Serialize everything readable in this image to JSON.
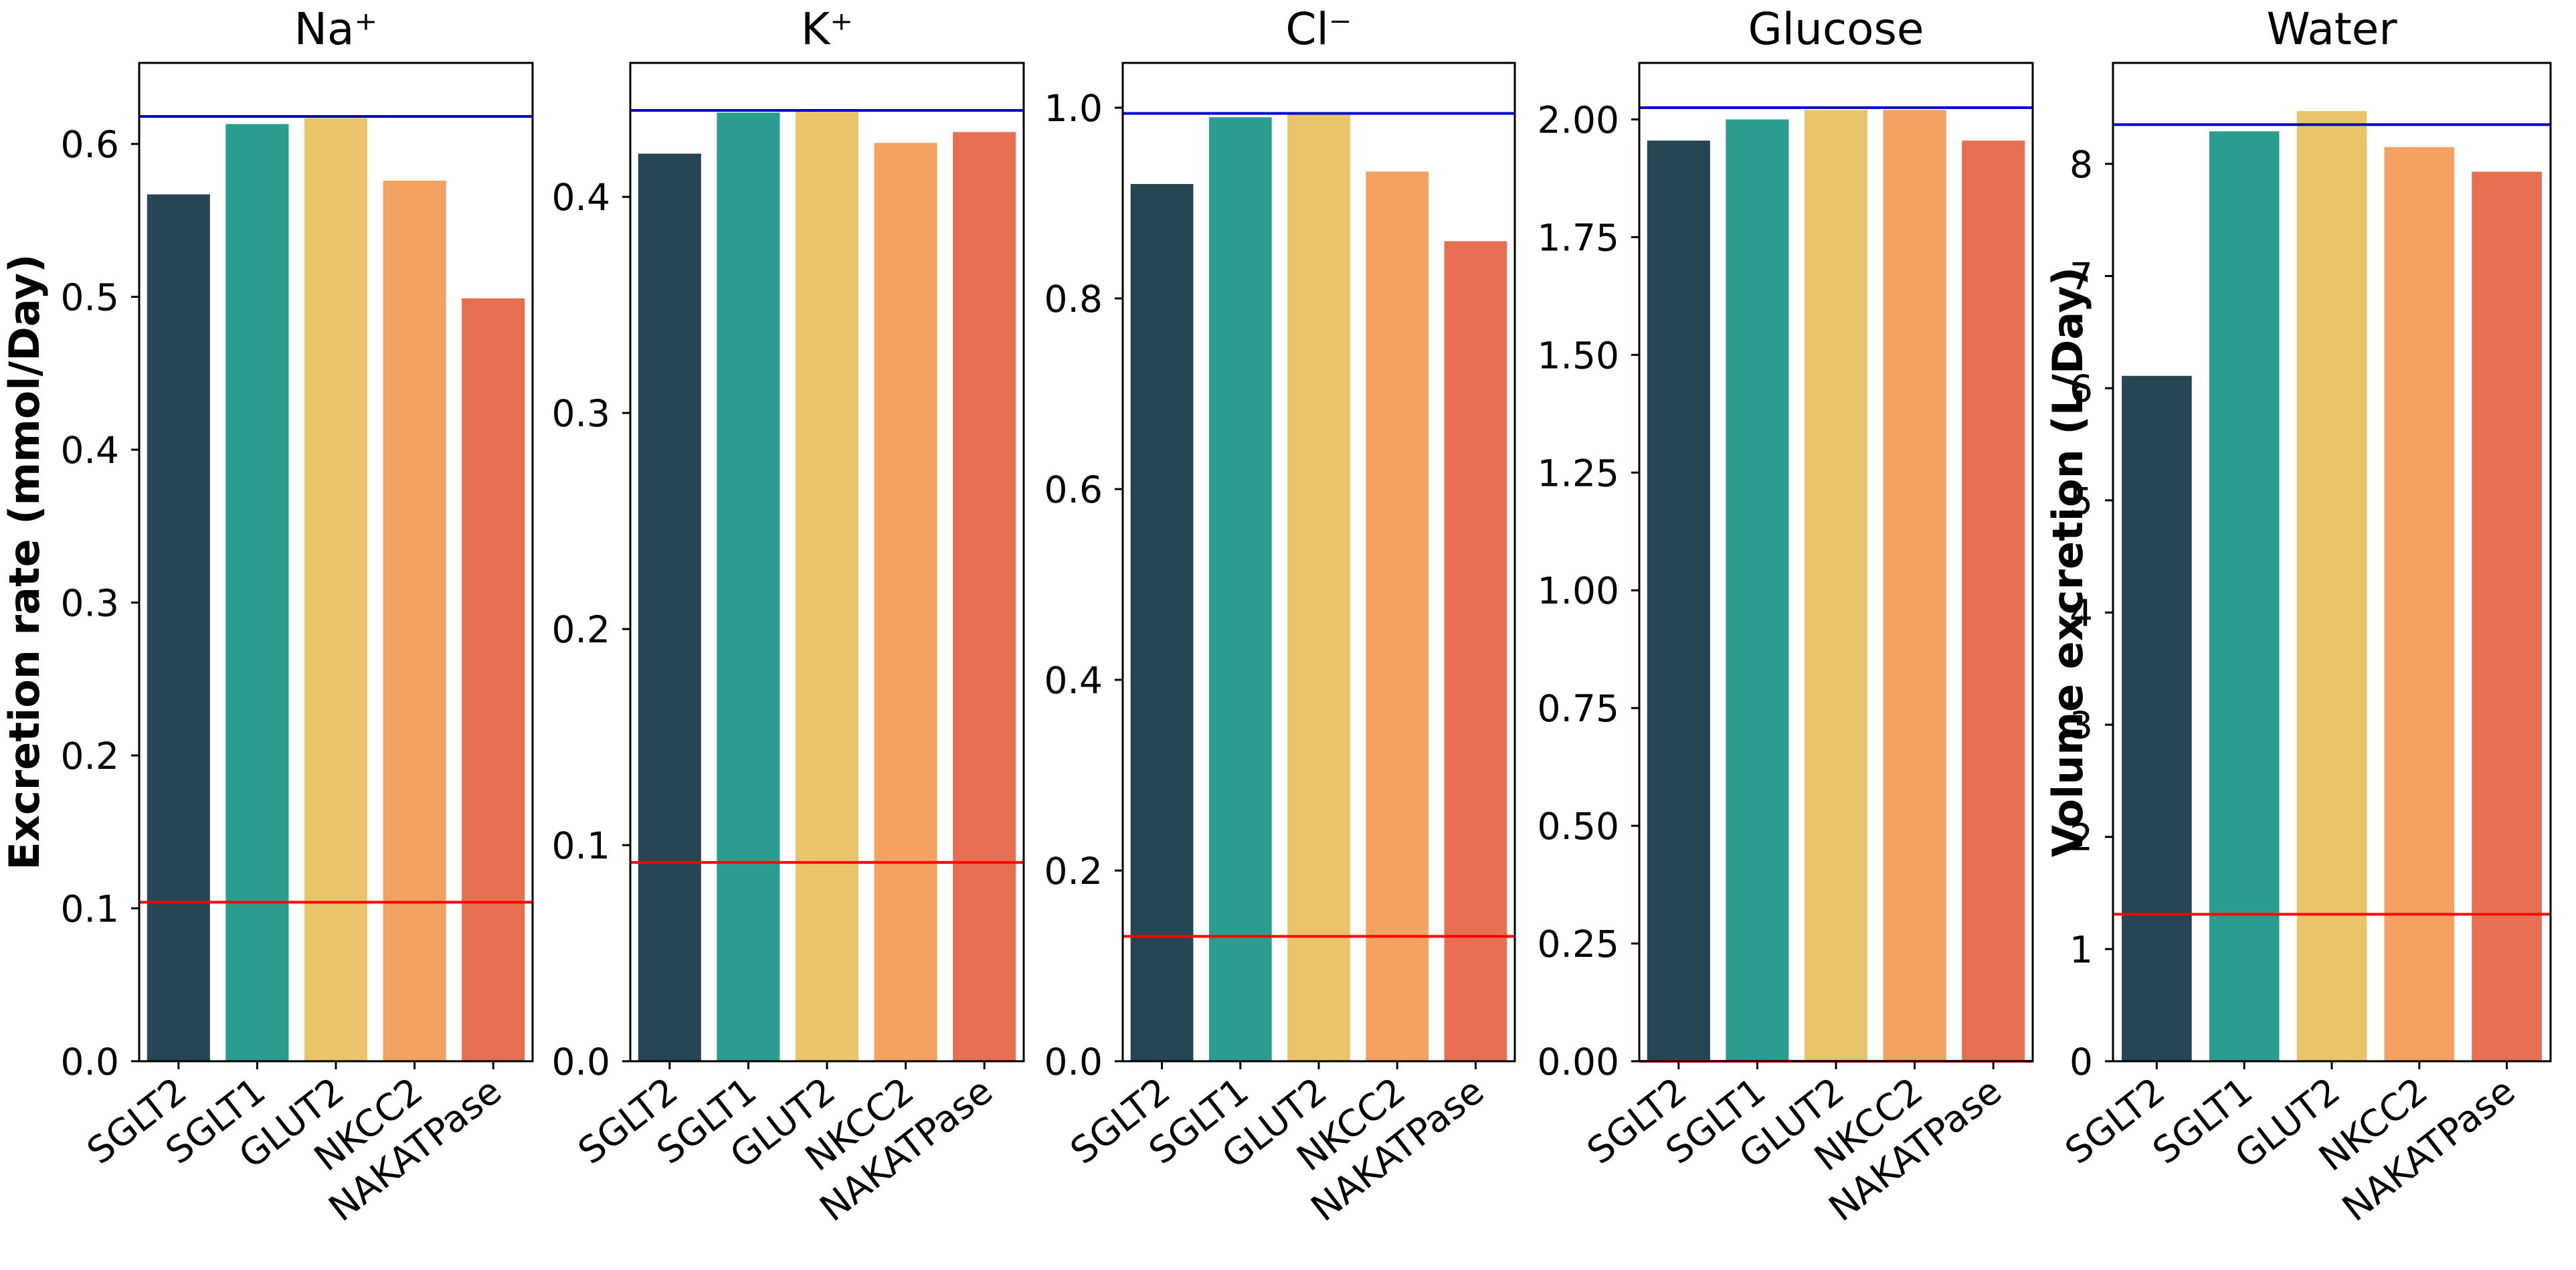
{
  "colors": {
    "SGLT2": "#264653",
    "SGLT1": "#2a9d8f",
    "GLUT2": "#e9c46a",
    "NKCC2": "#f4a261",
    "NAKATPase": "#e76f51",
    "upper_line": "#0000cc",
    "lower_line": "#ff0000"
  },
  "chart_data": [
    {
      "type": "bar",
      "title": "Na⁺",
      "ylabel": "Excretion rate (mmol/Day)",
      "categories": [
        "SGLT2",
        "SGLT1",
        "GLUT2",
        "NKCC2",
        "NAKATPase"
      ],
      "values": [
        0.567,
        0.613,
        0.617,
        0.576,
        0.499
      ],
      "ylim": [
        0,
        0.653
      ],
      "yticks": [
        0.0,
        0.1,
        0.2,
        0.3,
        0.4,
        0.5,
        0.6
      ],
      "ytick_labels": [
        "0.0",
        "0.1",
        "0.2",
        "0.3",
        "0.4",
        "0.5",
        "0.6"
      ],
      "hlines": [
        {
          "value": 0.618,
          "color": "blue"
        },
        {
          "value": 0.104,
          "color": "red"
        }
      ]
    },
    {
      "type": "bar",
      "title": "K⁺",
      "ylabel": "",
      "categories": [
        "SGLT2",
        "SGLT1",
        "GLUT2",
        "NKCC2",
        "NAKATPase"
      ],
      "values": [
        0.42,
        0.439,
        0.44,
        0.425,
        0.43
      ],
      "ylim": [
        0,
        0.462
      ],
      "yticks": [
        0.0,
        0.1,
        0.2,
        0.3,
        0.4
      ],
      "ytick_labels": [
        "0.0",
        "0.1",
        "0.2",
        "0.3",
        "0.4"
      ],
      "hlines": [
        {
          "value": 0.44,
          "color": "blue"
        },
        {
          "value": 0.092,
          "color": "red"
        }
      ]
    },
    {
      "type": "bar",
      "title": "Cl⁻",
      "ylabel": "",
      "categories": [
        "SGLT2",
        "SGLT1",
        "GLUT2",
        "NKCC2",
        "NAKATPase"
      ],
      "values": [
        0.92,
        0.99,
        0.993,
        0.933,
        0.86
      ],
      "ylim": [
        0,
        1.047
      ],
      "yticks": [
        0.0,
        0.2,
        0.4,
        0.6,
        0.8,
        1.0
      ],
      "ytick_labels": [
        "0.0",
        "0.2",
        "0.4",
        "0.6",
        "0.8",
        "1.0"
      ],
      "hlines": [
        {
          "value": 0.994,
          "color": "blue"
        },
        {
          "value": 0.131,
          "color": "red"
        }
      ]
    },
    {
      "type": "bar",
      "title": "Glucose",
      "ylabel": "",
      "categories": [
        "SGLT2",
        "SGLT1",
        "GLUT2",
        "NKCC2",
        "NAKATPase"
      ],
      "values": [
        1.955,
        2.0,
        2.02,
        2.02,
        1.955
      ],
      "ylim": [
        0,
        2.12
      ],
      "yticks": [
        0.0,
        0.25,
        0.5,
        0.75,
        1.0,
        1.25,
        1.5,
        1.75,
        2.0
      ],
      "ytick_labels": [
        "0.00",
        "0.25",
        "0.50",
        "0.75",
        "1.00",
        "1.25",
        "1.50",
        "1.75",
        "2.00"
      ],
      "hlines": [
        {
          "value": 2.025,
          "color": "blue"
        },
        {
          "value": 0.0,
          "color": "red"
        }
      ]
    },
    {
      "type": "bar",
      "title": "Water",
      "ylabel": "Volume excretion (L/Day)",
      "categories": [
        "SGLT2",
        "SGLT1",
        "GLUT2",
        "NKCC2",
        "NAKATPase"
      ],
      "values": [
        6.11,
        8.29,
        8.47,
        8.15,
        7.93
      ],
      "ylim": [
        0,
        8.9
      ],
      "yticks": [
        0,
        1,
        2,
        3,
        4,
        5,
        6,
        7,
        8
      ],
      "ytick_labels": [
        "0",
        "1",
        "2",
        "3",
        "4",
        "5",
        "6",
        "7",
        "8"
      ],
      "hlines": [
        {
          "value": 8.35,
          "color": "blue"
        },
        {
          "value": 1.31,
          "color": "red"
        }
      ]
    }
  ]
}
